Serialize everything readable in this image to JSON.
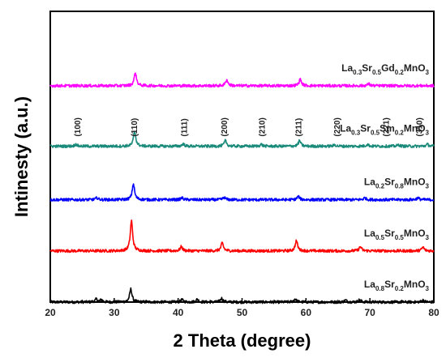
{
  "chart_data": {
    "type": "line",
    "xlabel": "2 Theta (degree)",
    "ylabel": "Intinesty (a.u.)",
    "xlim": [
      20,
      80
    ],
    "xticks": [
      20,
      30,
      40,
      50,
      60,
      70,
      80
    ],
    "ylim": [
      0,
      6.25
    ],
    "grid": false,
    "legend": "none",
    "series": [
      {
        "name": "La0.8Sr0.2MnO3",
        "label": {
          "base": "La",
          "parts": [
            [
              "0.8",
              "Sr"
            ],
            [
              "0.2",
              "MnO"
            ],
            [
              "3",
              ""
            ]
          ]
        },
        "color": "#000000",
        "baseline": 0.0,
        "noise": 0.03,
        "peaks": [
          [
            27.2,
            0.06
          ],
          [
            28.0,
            0.05
          ],
          [
            32.6,
            0.28
          ],
          [
            40.6,
            0.05
          ],
          [
            43.0,
            0.06
          ],
          [
            46.8,
            0.08
          ],
          [
            58.3,
            0.07
          ],
          [
            66.2,
            0.04
          ],
          [
            68.4,
            0.05
          ],
          [
            78.3,
            0.04
          ]
        ]
      },
      {
        "name": "La0.5Sr0.5MnO3",
        "label": {
          "base": "La",
          "parts": [
            [
              "0.5",
              "Sr"
            ],
            [
              "0.5",
              "MnO"
            ],
            [
              "3",
              ""
            ]
          ]
        },
        "color": "#ff0000",
        "baseline": 1.1,
        "noise": 0.03,
        "peaks": [
          [
            32.7,
            0.65
          ],
          [
            40.5,
            0.09
          ],
          [
            46.9,
            0.17
          ],
          [
            58.5,
            0.22
          ],
          [
            68.5,
            0.09
          ],
          [
            78.3,
            0.08
          ]
        ]
      },
      {
        "name": "La0.2Sr0.8MnO3",
        "label": {
          "base": "La",
          "parts": [
            [
              "0.2",
              "Sr"
            ],
            [
              "0.8",
              "MnO"
            ],
            [
              "3",
              ""
            ]
          ]
        },
        "color": "#0000ff",
        "baseline": 2.2,
        "noise": 0.03,
        "peaks": [
          [
            27.3,
            0.04
          ],
          [
            33.0,
            0.34
          ],
          [
            40.6,
            0.04
          ],
          [
            47.2,
            0.05
          ],
          [
            58.8,
            0.07
          ],
          [
            69.2,
            0.04
          ],
          [
            77.5,
            0.04
          ]
        ]
      },
      {
        "name": "La0.3Sr0.5Sm0.2MnO3",
        "label": {
          "base": "La",
          "parts": [
            [
              "0.3",
              "Sr"
            ],
            [
              "0.5",
              "Sm"
            ],
            [
              "0.2",
              "MnO"
            ],
            [
              "3",
              ""
            ]
          ]
        },
        "color": "#1a8a7a",
        "baseline": 3.35,
        "noise": 0.03,
        "peaks": [
          [
            24.0,
            0.04
          ],
          [
            33.2,
            0.32
          ],
          [
            40.8,
            0.05
          ],
          [
            47.4,
            0.12
          ],
          [
            53.0,
            0.04
          ],
          [
            59.0,
            0.12
          ],
          [
            64.5,
            0.03
          ],
          [
            69.6,
            0.04
          ],
          [
            74.5,
            0.03
          ],
          [
            79.0,
            0.04
          ]
        ]
      },
      {
        "name": "La0.3Sr0.5Gd0.2MnO3",
        "label": {
          "base": "La",
          "parts": [
            [
              "0.3",
              "Sr"
            ],
            [
              "0.5",
              "Gd"
            ],
            [
              "0.2",
              "MnO"
            ],
            [
              "3",
              ""
            ]
          ]
        },
        "color": "#ff00ff",
        "baseline": 4.65,
        "noise": 0.03,
        "peaks": [
          [
            33.3,
            0.28
          ],
          [
            47.6,
            0.13
          ],
          [
            59.1,
            0.14
          ],
          [
            69.8,
            0.04
          ]
        ]
      }
    ],
    "annotations": [
      {
        "text": "(100)",
        "x": 24.3
      },
      {
        "text": "(110)",
        "x": 33.2
      },
      {
        "text": "(111)",
        "x": 41.0
      },
      {
        "text": "(200)",
        "x": 47.3
      },
      {
        "text": "(210)",
        "x": 53.2
      },
      {
        "text": "(211)",
        "x": 58.9
      },
      {
        "text": "(220)",
        "x": 64.9
      },
      {
        "text": "(221)",
        "x": 72.6
      },
      {
        "text": "(310)",
        "x": 77.8
      }
    ]
  }
}
